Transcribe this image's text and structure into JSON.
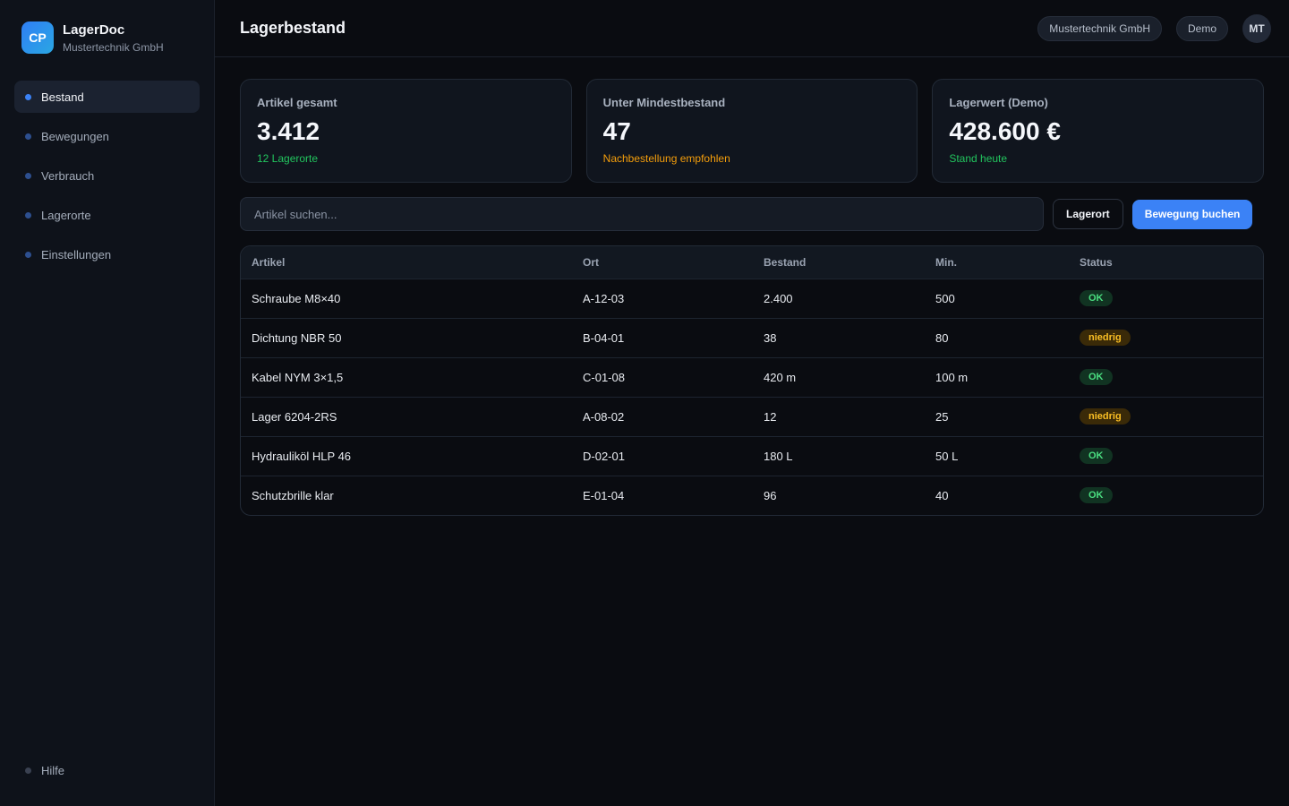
{
  "brand": {
    "logo": "CP",
    "name": "LagerDoc",
    "company": "Mustertechnik GmbH"
  },
  "nav": {
    "items": [
      {
        "label": "Bestand",
        "active": true
      },
      {
        "label": "Bewegungen",
        "active": false
      },
      {
        "label": "Verbrauch",
        "active": false
      },
      {
        "label": "Lagerorte",
        "active": false
      },
      {
        "label": "Einstellungen",
        "active": false
      }
    ],
    "help": "Hilfe"
  },
  "header": {
    "title": "Lagerbestand",
    "company_pill": "Mustertechnik GmbH",
    "mode_pill": "Demo",
    "avatar": "MT"
  },
  "stats": [
    {
      "label": "Artikel gesamt",
      "value": "3.412",
      "sub": "12 Lagerorte",
      "tone": "green"
    },
    {
      "label": "Unter Mindestbestand",
      "value": "47",
      "sub": "Nachbestellung empfohlen",
      "tone": "orange"
    },
    {
      "label": "Lagerwert (Demo)",
      "value": "428.600 €",
      "sub": "Stand heute",
      "tone": "green"
    }
  ],
  "toolbar": {
    "search_placeholder": "Artikel suchen...",
    "location_button": "Lagerort",
    "primary_button": "Bewegung buchen"
  },
  "table": {
    "columns": [
      "Artikel",
      "Ort",
      "Bestand",
      "Min.",
      "Status"
    ],
    "rows": [
      {
        "artikel": "Schraube M8×40",
        "ort": "A-12-03",
        "bestand": "2.400",
        "min": "500",
        "status": "OK",
        "status_type": "ok"
      },
      {
        "artikel": "Dichtung NBR 50",
        "ort": "B-04-01",
        "bestand": "38",
        "min": "80",
        "status": "niedrig",
        "status_type": "low"
      },
      {
        "artikel": "Kabel NYM 3×1,5",
        "ort": "C-01-08",
        "bestand": "420 m",
        "min": "100 m",
        "status": "OK",
        "status_type": "ok"
      },
      {
        "artikel": "Lager 6204-2RS",
        "ort": "A-08-02",
        "bestand": "12",
        "min": "25",
        "status": "niedrig",
        "status_type": "low"
      },
      {
        "artikel": "Hydrauliköl HLP 46",
        "ort": "D-02-01",
        "bestand": "180 L",
        "min": "50 L",
        "status": "OK",
        "status_type": "ok"
      },
      {
        "artikel": "Schutzbrille klar",
        "ort": "E-01-04",
        "bestand": "96",
        "min": "40",
        "status": "OK",
        "status_type": "ok"
      }
    ]
  },
  "colors": {
    "accent": "#3b82f6",
    "ok": "#4ade80",
    "low": "#fbbf24",
    "background": "#0a0c11"
  }
}
